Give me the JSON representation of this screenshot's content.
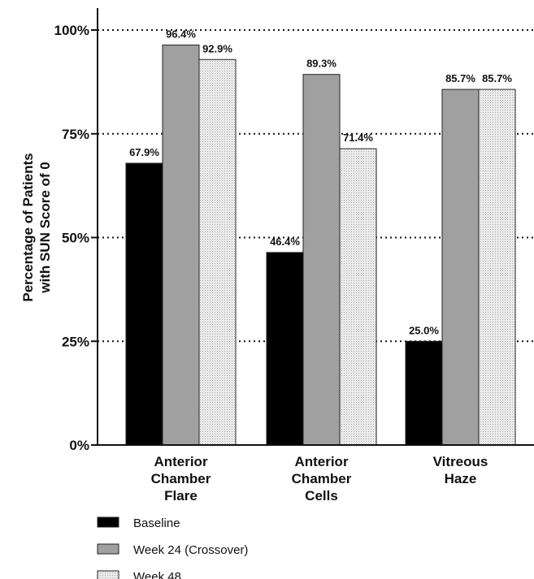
{
  "chart_data": {
    "type": "bar",
    "title": "",
    "ylabel_lines": [
      "Percentage of Patients",
      "with SUN Score of 0"
    ],
    "xlabel": "",
    "ylim": [
      0,
      100
    ],
    "yticks": [
      0,
      25,
      50,
      75,
      100
    ],
    "ytick_labels": [
      "0%",
      "25%",
      "50%",
      "75%",
      "100%"
    ],
    "grid": "horizontal dotted at major ticks",
    "categories": [
      [
        "Anterior",
        "Chamber",
        "Flare"
      ],
      [
        "Anterior",
        "Chamber",
        "Cells"
      ],
      [
        "Vitreous",
        "Haze"
      ]
    ],
    "series": [
      {
        "name": "Baseline",
        "values": [
          67.9,
          46.4,
          25.0
        ],
        "data_labels": [
          "67.9%",
          "46.4%",
          "25.0%"
        ],
        "fill": "#000000"
      },
      {
        "name": "Week 24 (Crossover)",
        "values": [
          96.4,
          89.3,
          85.7
        ],
        "data_labels": [
          "96.4%",
          "89.3%",
          "85.7%"
        ],
        "fill": "#a0a0a0"
      },
      {
        "name": "Week 48",
        "values": [
          92.9,
          71.4,
          85.7
        ],
        "data_labels": [
          "92.9%",
          "71.4%",
          "85.7%"
        ],
        "fill": "dotted-pattern"
      }
    ],
    "legend_position": "bottom-left"
  }
}
